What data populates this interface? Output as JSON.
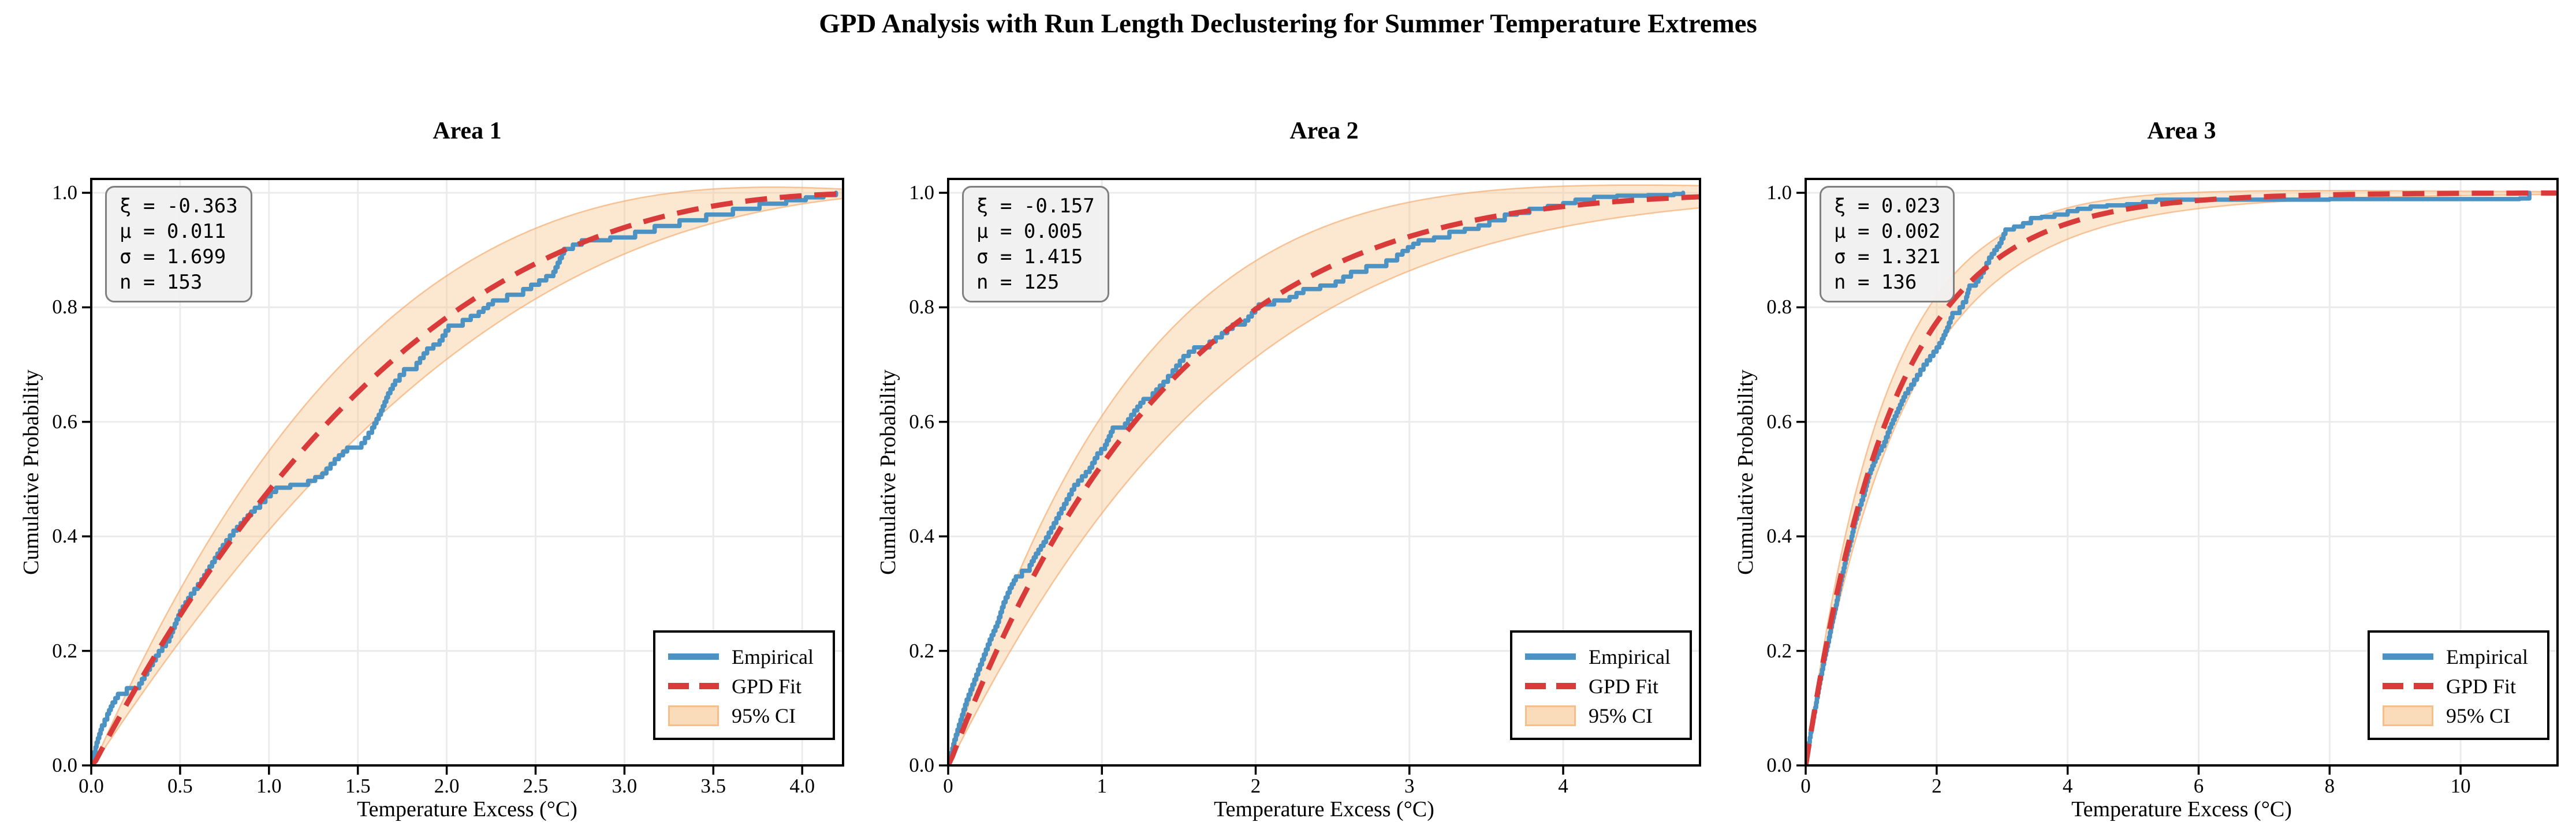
{
  "figure_title": "GPD Analysis with Run Length Declustering for Summer Temperature Extremes",
  "chart_data": {
    "type": "line",
    "xlabel": "Temperature Excess (°C)",
    "ylabel": "Cumulative Probability",
    "grid": true,
    "ylim": [
      0,
      1.0242
    ],
    "y_ticks": [
      0.0,
      0.2,
      0.4,
      0.6,
      0.8,
      1.0
    ],
    "y_tick_labels": [
      "0.0",
      "0.2",
      "0.4",
      "0.6",
      "0.8",
      "1.0"
    ],
    "legend": {
      "position": "lower right",
      "entries": [
        {
          "label": "Empirical",
          "style": "solid_blue_line"
        },
        {
          "label": "GPD Fit",
          "style": "dashed_red_line"
        },
        {
          "label": "95% CI",
          "style": "orange_band"
        }
      ]
    },
    "colors": {
      "empirical": "#4C92C3",
      "gpd_fit": "#D93B3B",
      "ci_fill": "#F9C592",
      "ci_fill_opacity": 0.42,
      "ci_edge": "#F4A768",
      "grid": "#EBEBEB",
      "spine": "#000000",
      "stats_box_bg": "#F0F0F0",
      "stats_box_border": "#7F7F7F"
    },
    "ci_model": "GPD_cdf ± c·F·sqrt(1-F), 95% confidence band",
    "panels": [
      {
        "title": "Area 1",
        "stats_lines": [
          "ξ = -0.363",
          "μ = 0.011",
          "σ = 1.699",
          "n = 153"
        ],
        "gpd_params": {
          "xi": -0.363,
          "mu": 0.011,
          "sigma": 1.699,
          "n": 153
        },
        "xlim": [
          0,
          4.23
        ],
        "x_ticks": [
          0.0,
          0.5,
          1.0,
          1.5,
          2.0,
          2.5,
          3.0,
          3.5,
          4.0
        ],
        "x_tick_labels": [
          "0.0",
          "0.5",
          "1.0",
          "1.5",
          "2.0",
          "2.5",
          "3.0",
          "3.5",
          "4.0"
        ],
        "ci_c": 0.2,
        "empirical_points": [
          [
            0,
            0
          ],
          [
            0.03,
            0.04
          ],
          [
            0.06,
            0.07
          ],
          [
            0.09,
            0.09
          ],
          [
            0.12,
            0.11
          ],
          [
            0.15,
            0.125
          ],
          [
            0.2,
            0.135
          ],
          [
            0.27,
            0.143
          ],
          [
            0.33,
            0.175
          ],
          [
            0.38,
            0.2
          ],
          [
            0.44,
            0.225
          ],
          [
            0.5,
            0.27
          ],
          [
            0.56,
            0.3
          ],
          [
            0.62,
            0.325
          ],
          [
            0.68,
            0.355
          ],
          [
            0.74,
            0.385
          ],
          [
            0.8,
            0.41
          ],
          [
            0.86,
            0.43
          ],
          [
            0.92,
            0.45
          ],
          [
            0.98,
            0.47
          ],
          [
            1.04,
            0.485
          ],
          [
            1.12,
            0.49
          ],
          [
            1.22,
            0.497
          ],
          [
            1.3,
            0.51
          ],
          [
            1.37,
            0.535
          ],
          [
            1.44,
            0.555
          ],
          [
            1.52,
            0.563
          ],
          [
            1.58,
            0.59
          ],
          [
            1.63,
            0.62
          ],
          [
            1.67,
            0.65
          ],
          [
            1.71,
            0.672
          ],
          [
            1.76,
            0.692
          ],
          [
            1.83,
            0.703
          ],
          [
            1.89,
            0.728
          ],
          [
            1.96,
            0.742
          ],
          [
            2.01,
            0.768
          ],
          [
            2.09,
            0.778
          ],
          [
            2.18,
            0.792
          ],
          [
            2.26,
            0.812
          ],
          [
            2.34,
            0.822
          ],
          [
            2.43,
            0.832
          ],
          [
            2.52,
            0.847
          ],
          [
            2.6,
            0.862
          ],
          [
            2.66,
            0.902
          ],
          [
            2.76,
            0.917
          ],
          [
            2.92,
            0.922
          ],
          [
            3.06,
            0.932
          ],
          [
            3.17,
            0.942
          ],
          [
            3.31,
            0.952
          ],
          [
            3.46,
            0.962
          ],
          [
            3.61,
            0.972
          ],
          [
            3.76,
            0.981
          ],
          [
            3.91,
            0.987
          ],
          [
            4.02,
            0.992
          ],
          [
            4.12,
            0.996
          ],
          [
            4.19,
            1.0
          ]
        ]
      },
      {
        "title": "Area 2",
        "stats_lines": [
          "ξ = -0.157",
          "μ = 0.005",
          "σ = 1.415",
          "n = 125"
        ],
        "gpd_params": {
          "xi": -0.157,
          "mu": 0.005,
          "sigma": 1.415,
          "n": 125
        },
        "xlim": [
          0,
          4.89
        ],
        "x_ticks": [
          0,
          1,
          2,
          3,
          4
        ],
        "x_tick_labels": [
          "0",
          "1",
          "2",
          "3",
          "4"
        ],
        "ci_c": 0.235,
        "empirical_points": [
          [
            0,
            0
          ],
          [
            0.04,
            0.045
          ],
          [
            0.08,
            0.08
          ],
          [
            0.12,
            0.115
          ],
          [
            0.17,
            0.15
          ],
          [
            0.22,
            0.185
          ],
          [
            0.27,
            0.22
          ],
          [
            0.32,
            0.25
          ],
          [
            0.36,
            0.285
          ],
          [
            0.4,
            0.31
          ],
          [
            0.44,
            0.33
          ],
          [
            0.48,
            0.34
          ],
          [
            0.53,
            0.35
          ],
          [
            0.57,
            0.37
          ],
          [
            0.62,
            0.39
          ],
          [
            0.67,
            0.415
          ],
          [
            0.72,
            0.44
          ],
          [
            0.77,
            0.465
          ],
          [
            0.82,
            0.49
          ],
          [
            0.87,
            0.505
          ],
          [
            0.92,
            0.52
          ],
          [
            0.97,
            0.545
          ],
          [
            1.02,
            0.56
          ],
          [
            1.07,
            0.59
          ],
          [
            1.15,
            0.597
          ],
          [
            1.21,
            0.62
          ],
          [
            1.27,
            0.64
          ],
          [
            1.33,
            0.65
          ],
          [
            1.4,
            0.67
          ],
          [
            1.46,
            0.69
          ],
          [
            1.53,
            0.715
          ],
          [
            1.6,
            0.73
          ],
          [
            1.7,
            0.74
          ],
          [
            1.78,
            0.755
          ],
          [
            1.85,
            0.77
          ],
          [
            1.93,
            0.777
          ],
          [
            2.02,
            0.805
          ],
          [
            2.12,
            0.812
          ],
          [
            2.22,
            0.818
          ],
          [
            2.31,
            0.832
          ],
          [
            2.42,
            0.838
          ],
          [
            2.52,
            0.845
          ],
          [
            2.62,
            0.862
          ],
          [
            2.72,
            0.872
          ],
          [
            2.85,
            0.882
          ],
          [
            2.92,
            0.892
          ],
          [
            2.99,
            0.905
          ],
          [
            3.06,
            0.917
          ],
          [
            3.16,
            0.922
          ],
          [
            3.26,
            0.932
          ],
          [
            3.36,
            0.937
          ],
          [
            3.45,
            0.943
          ],
          [
            3.52,
            0.952
          ],
          [
            3.62,
            0.962
          ],
          [
            3.7,
            0.965
          ],
          [
            3.78,
            0.972
          ],
          [
            3.9,
            0.977
          ],
          [
            4.0,
            0.982
          ],
          [
            4.08,
            0.988
          ],
          [
            4.2,
            0.993
          ],
          [
            4.35,
            0.995
          ],
          [
            4.55,
            0.996
          ],
          [
            4.72,
            0.998
          ],
          [
            4.78,
            1.0
          ]
        ]
      },
      {
        "title": "Area 3",
        "stats_lines": [
          "ξ = 0.023",
          "μ = 0.002",
          "σ = 1.321",
          "n = 136"
        ],
        "gpd_params": {
          "xi": 0.023,
          "mu": 0.002,
          "sigma": 1.321,
          "n": 136
        },
        "xlim": [
          0,
          11.48
        ],
        "x_ticks": [
          0,
          2,
          4,
          6,
          8,
          10
        ],
        "x_tick_labels": [
          "0",
          "2",
          "4",
          "6",
          "8",
          "10"
        ],
        "ci_c": 0.125,
        "empirical_points": [
          [
            0,
            0
          ],
          [
            0.05,
            0.04
          ],
          [
            0.1,
            0.075
          ],
          [
            0.16,
            0.11
          ],
          [
            0.22,
            0.15
          ],
          [
            0.28,
            0.185
          ],
          [
            0.34,
            0.215
          ],
          [
            0.4,
            0.25
          ],
          [
            0.46,
            0.28
          ],
          [
            0.52,
            0.315
          ],
          [
            0.58,
            0.345
          ],
          [
            0.64,
            0.375
          ],
          [
            0.7,
            0.4
          ],
          [
            0.76,
            0.43
          ],
          [
            0.83,
            0.455
          ],
          [
            0.9,
            0.48
          ],
          [
            0.97,
            0.51
          ],
          [
            1.04,
            0.53
          ],
          [
            1.12,
            0.55
          ],
          [
            1.2,
            0.565
          ],
          [
            1.28,
            0.59
          ],
          [
            1.36,
            0.61
          ],
          [
            1.44,
            0.63
          ],
          [
            1.52,
            0.65
          ],
          [
            1.61,
            0.665
          ],
          [
            1.7,
            0.682
          ],
          [
            1.8,
            0.7
          ],
          [
            1.9,
            0.715
          ],
          [
            2.0,
            0.73
          ],
          [
            2.08,
            0.745
          ],
          [
            2.16,
            0.765
          ],
          [
            2.24,
            0.79
          ],
          [
            2.35,
            0.8
          ],
          [
            2.45,
            0.818
          ],
          [
            2.5,
            0.838
          ],
          [
            2.6,
            0.845
          ],
          [
            2.72,
            0.868
          ],
          [
            2.8,
            0.887
          ],
          [
            2.88,
            0.9
          ],
          [
            2.96,
            0.912
          ],
          [
            3.05,
            0.936
          ],
          [
            3.18,
            0.941
          ],
          [
            3.32,
            0.947
          ],
          [
            3.44,
            0.956
          ],
          [
            3.6,
            0.958
          ],
          [
            3.8,
            0.962
          ],
          [
            4.0,
            0.968
          ],
          [
            4.15,
            0.972
          ],
          [
            4.35,
            0.976
          ],
          [
            4.6,
            0.978
          ],
          [
            4.9,
            0.98
          ],
          [
            5.15,
            0.984
          ],
          [
            5.35,
            0.988
          ],
          [
            6.0,
            0.988
          ],
          [
            7.0,
            0.988
          ],
          [
            8.0,
            0.989
          ],
          [
            9.0,
            0.989
          ],
          [
            10.0,
            0.989
          ],
          [
            10.9,
            0.99
          ],
          [
            11.05,
            1.0
          ]
        ]
      }
    ]
  }
}
